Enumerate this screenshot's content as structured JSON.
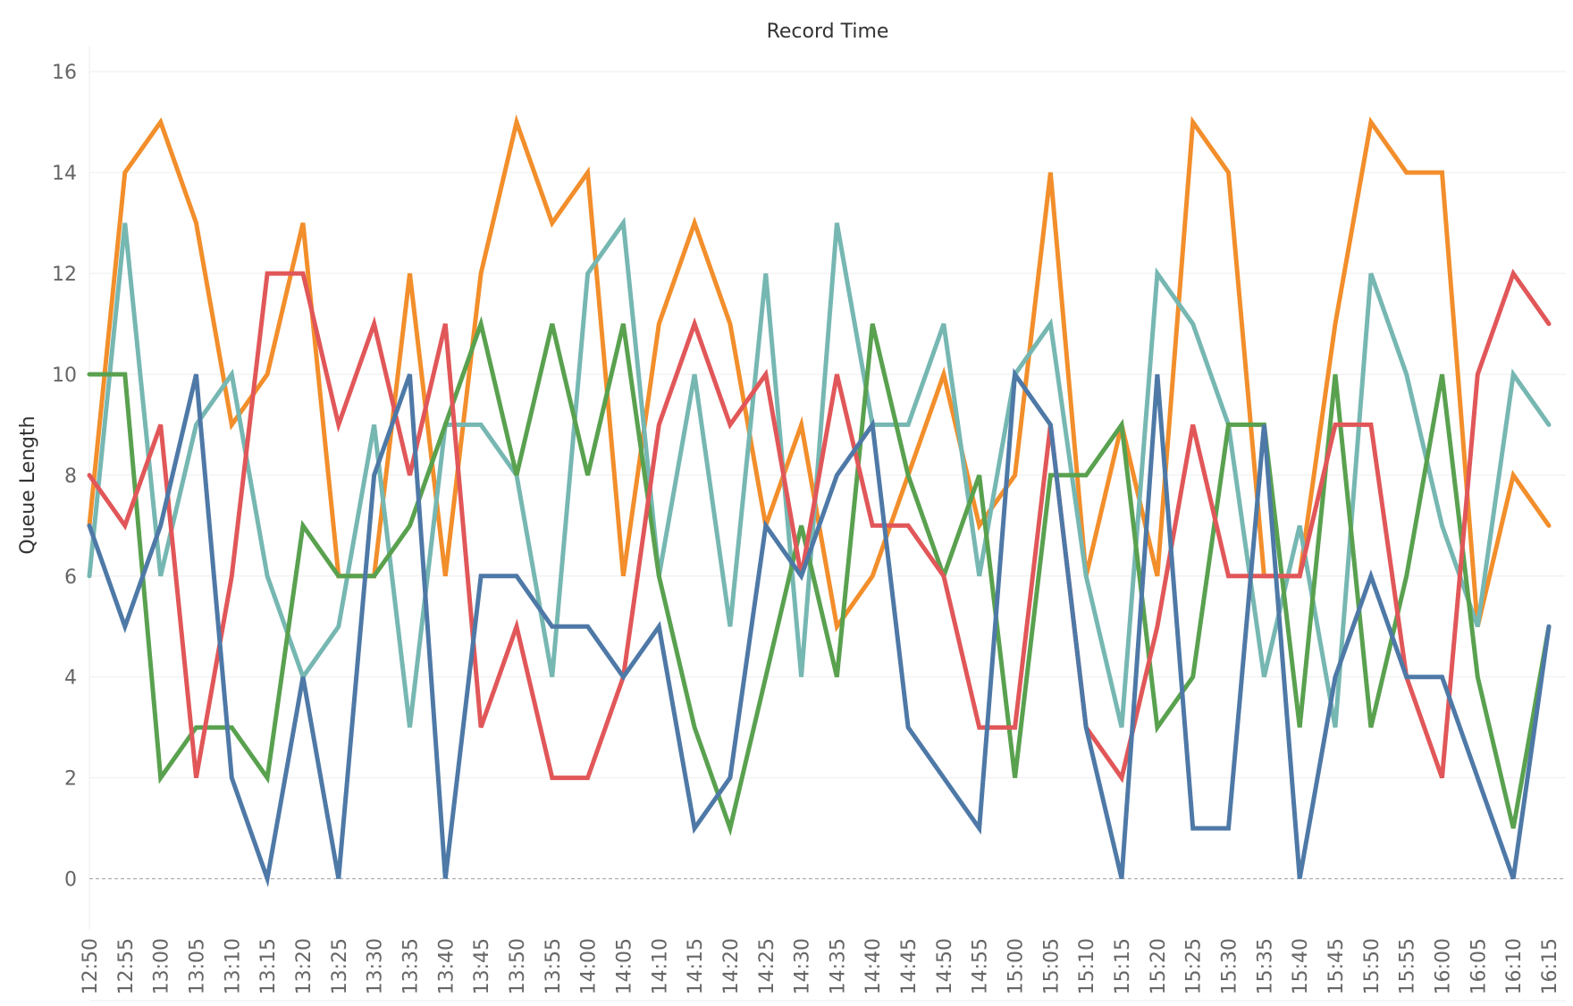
{
  "chart_data": {
    "type": "line",
    "title": "Record Time",
    "ylabel": "Queue Length",
    "xlabel": "",
    "ylim": [
      -1,
      16.5
    ],
    "yticks": [
      0,
      2,
      4,
      6,
      8,
      10,
      12,
      14,
      16
    ],
    "grid": true,
    "legend": "none",
    "x": [
      "12:50",
      "12:55",
      "13:00",
      "13:05",
      "13:10",
      "13:15",
      "13:20",
      "13:25",
      "13:30",
      "13:35",
      "13:40",
      "13:45",
      "13:50",
      "13:55",
      "14:00",
      "14:05",
      "14:10",
      "14:15",
      "14:20",
      "14:25",
      "14:30",
      "14:35",
      "14:40",
      "14:45",
      "14:50",
      "14:55",
      "15:00",
      "15:05",
      "15:10",
      "15:15",
      "15:20",
      "15:25",
      "15:30",
      "15:35",
      "15:40",
      "15:45",
      "15:50",
      "15:55",
      "16:00",
      "16:05",
      "16:10",
      "16:15"
    ],
    "series": [
      {
        "color": "#F28E2B",
        "values": [
          7,
          14,
          15,
          13,
          9,
          10,
          13,
          6,
          6,
          12,
          6,
          12,
          15,
          13,
          14,
          6,
          11,
          13,
          11,
          7,
          9,
          5,
          6,
          8,
          10,
          7,
          8,
          14,
          6,
          9,
          6,
          15,
          14,
          6,
          6,
          11,
          15,
          14,
          14,
          5,
          8,
          7
        ]
      },
      {
        "color": "#76B7B2",
        "values": [
          6,
          13,
          6,
          9,
          10,
          6,
          4,
          5,
          9,
          3,
          9,
          9,
          8,
          4,
          12,
          13,
          6,
          10,
          5,
          12,
          4,
          13,
          9,
          9,
          11,
          6,
          10,
          11,
          6,
          3,
          12,
          11,
          9,
          4,
          7,
          3,
          12,
          10,
          7,
          5,
          10,
          9
        ]
      },
      {
        "color": "#59A14F",
        "values": [
          10,
          10,
          2,
          3,
          3,
          2,
          7,
          6,
          6,
          7,
          9,
          11,
          8,
          11,
          8,
          11,
          6,
          3,
          1,
          4,
          7,
          4,
          11,
          8,
          6,
          8,
          2,
          8,
          8,
          9,
          3,
          4,
          9,
          9,
          3,
          10,
          3,
          6,
          10,
          4,
          1,
          5
        ]
      },
      {
        "color": "#E15759",
        "values": [
          8,
          7,
          9,
          2,
          6,
          12,
          12,
          9,
          11,
          8,
          11,
          3,
          5,
          2,
          2,
          4,
          9,
          11,
          9,
          10,
          6,
          10,
          7,
          7,
          6,
          3,
          3,
          9,
          3,
          2,
          5,
          9,
          6,
          6,
          6,
          9,
          9,
          4,
          2,
          10,
          12,
          11
        ]
      },
      {
        "color": "#4E79A7",
        "values": [
          7,
          5,
          7,
          10,
          2,
          0,
          4,
          0,
          8,
          10,
          0,
          6,
          6,
          5,
          5,
          4,
          5,
          1,
          2,
          7,
          6,
          8,
          9,
          3,
          2,
          1,
          10,
          9,
          3,
          0,
          10,
          1,
          1,
          9,
          0,
          4,
          6,
          4,
          4,
          2,
          0,
          5
        ]
      }
    ]
  }
}
